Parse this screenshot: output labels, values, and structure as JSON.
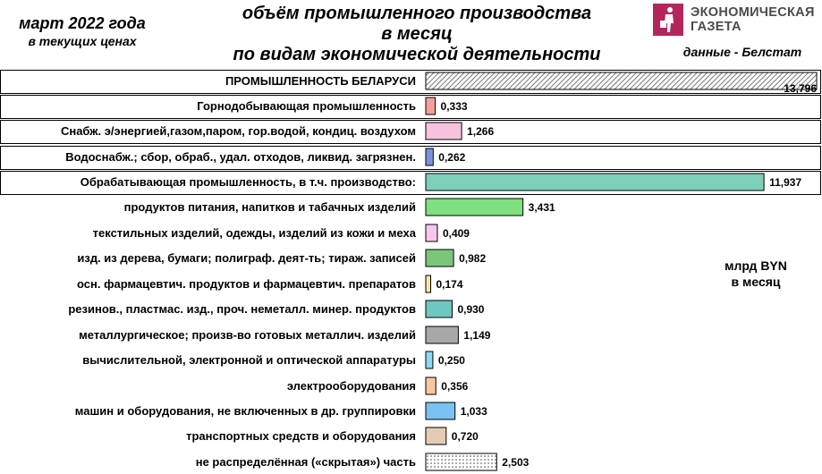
{
  "header": {
    "period": "март 2022 года",
    "prices_note": "в текущих ценах",
    "title_lines": [
      "объём промышленного производства",
      "в месяц",
      "по видам экономической деятельности"
    ],
    "source": "данные - Белстат",
    "logo_text_line1": "ЭКОНОМИЧЕСКАЯ",
    "logo_text_line2": "ГАЗЕТА",
    "logo_icon": "briefcase-walker-icon",
    "unit_line1": "млрд BYN",
    "unit_line2": "в месяц"
  },
  "chart_data": {
    "type": "bar",
    "orientation": "horizontal",
    "unit": "млрд BYN",
    "categories": [
      "ПРОМЫШЛЕННОСТЬ БЕЛАРУСИ",
      "Горнодобывающая промышленность",
      "Снабж. э/энергией,газом,паром, гор.водой, кондиц. воздухом",
      "Водоснабж.; сбор, обраб., удал. отходов, ликвид. загрязнен.",
      "Обрабатывающая промышленность, в т.ч. производство:",
      "продуктов питания, напитков и табачных изделий",
      "текстильных изделий, одежды, изделий из кожи и меха",
      "изд. из дерева, бумаги; полиграф. деят-ть; тираж. записей",
      "осн. фармацевтич. продуктов и фармацевтич. препаратов",
      "резинов., пластмас. изд., проч. неметалл. минер. продуктов",
      "металлургическое; произв-во готовых металлич. изделий",
      "вычислительной, электронной и оптической аппаратуры",
      "электрооборудования",
      "машин и оборудования, не включенных в др. группировки",
      "транспортных средств и оборудования",
      "не распределённая («скрытая») часть"
    ],
    "values": [
      13.796,
      0.333,
      1.266,
      0.262,
      11.937,
      3.431,
      0.409,
      0.982,
      0.174,
      0.93,
      1.149,
      0.25,
      0.356,
      1.033,
      0.72,
      2.503
    ],
    "value_labels": [
      "13,796",
      "0,333",
      "1,266",
      "0,262",
      "11,937",
      "3,431",
      "0,409",
      "0,982",
      "0,174",
      "0,930",
      "1,149",
      "0,250",
      "0,356",
      "1,033",
      "0,720",
      "2,503"
    ],
    "colors": [
      "hatched",
      "#f4a09a",
      "#f7c2de",
      "#7a93e0",
      "#7ccfb8",
      "#7ee07e",
      "#f7c6ee",
      "#7bc67b",
      "#f7e6a0",
      "#6fc7c2",
      "#a8a8a8",
      "#8fd8f2",
      "#f5c8a0",
      "#7ac0f0",
      "#e6cbb4",
      "dotted"
    ],
    "framed_rows": [
      0,
      1,
      2,
      3,
      4
    ],
    "xlim": [
      0,
      13.796
    ]
  }
}
